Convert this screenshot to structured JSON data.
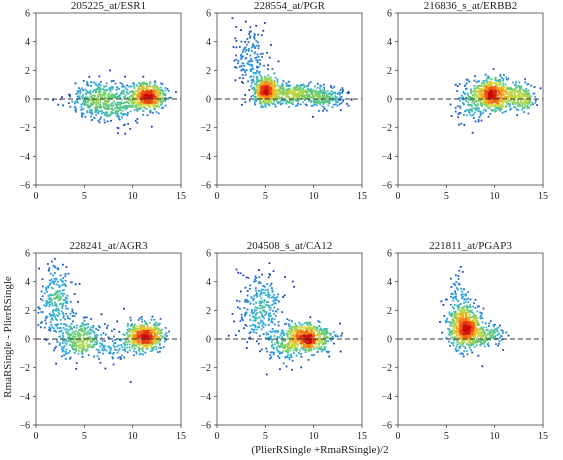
{
  "figure": {
    "xlabel": "(PlierRSingle +RmaRSingle)/2",
    "ylabel": "RmaRSingle - PlierRSingle"
  },
  "chart_data": [
    {
      "type": "scatter",
      "title": "205225_at/ESR1",
      "xlim": [
        0,
        15
      ],
      "ylim": [
        -6,
        6
      ],
      "xticks": [
        0,
        5,
        10,
        15
      ],
      "yticks": [
        -6,
        -4,
        -2,
        0,
        2,
        4,
        6
      ],
      "reference_line": {
        "y": 0,
        "style": "dashed"
      },
      "density_coloring": true,
      "clusters": [
        {
          "center": [
            11.6,
            0.2
          ],
          "spread": [
            0.9,
            0.45
          ],
          "count": 520,
          "dense": true
        },
        {
          "center": [
            6.5,
            -0.1
          ],
          "spread": [
            1.6,
            0.6
          ],
          "count": 380,
          "dense": false
        },
        {
          "center": [
            9.0,
            -0.3
          ],
          "spread": [
            1.4,
            0.8
          ],
          "count": 160,
          "dense": false
        }
      ]
    },
    {
      "type": "scatter",
      "title": "228554_at/PGR",
      "xlim": [
        0,
        15
      ],
      "ylim": [
        -6,
        6
      ],
      "xticks": [
        0,
        5,
        10,
        15
      ],
      "yticks": [
        -6,
        -4,
        -2,
        0,
        2,
        4,
        6
      ],
      "reference_line": {
        "y": 0,
        "style": "dashed"
      },
      "density_coloring": true,
      "clusters": [
        {
          "center": [
            5.2,
            0.6
          ],
          "spread": [
            0.7,
            0.45
          ],
          "count": 480,
          "dense": true
        },
        {
          "center": [
            8.3,
            0.3
          ],
          "spread": [
            1.8,
            0.35
          ],
          "count": 420,
          "dense": true
        },
        {
          "center": [
            3.6,
            2.8
          ],
          "spread": [
            0.9,
            1.2
          ],
          "count": 170,
          "dense": false
        },
        {
          "center": [
            11.5,
            0.0
          ],
          "spread": [
            1.0,
            0.35
          ],
          "count": 120,
          "dense": false
        }
      ]
    },
    {
      "type": "scatter",
      "title": "216836_s_at/ERBB2",
      "xlim": [
        0,
        15
      ],
      "ylim": [
        -6,
        6
      ],
      "xticks": [
        0,
        5,
        10,
        15
      ],
      "yticks": [
        -6,
        -4,
        -2,
        0,
        2,
        4,
        6
      ],
      "reference_line": {
        "y": 0,
        "style": "dashed"
      },
      "density_coloring": true,
      "clusters": [
        {
          "center": [
            9.8,
            0.3
          ],
          "spread": [
            1.0,
            0.55
          ],
          "count": 650,
          "dense": true
        },
        {
          "center": [
            12.8,
            0.1
          ],
          "spread": [
            0.8,
            0.45
          ],
          "count": 200,
          "dense": false
        },
        {
          "center": [
            7.5,
            -0.3
          ],
          "spread": [
            0.9,
            0.8
          ],
          "count": 120,
          "dense": false
        }
      ]
    },
    {
      "type": "scatter",
      "title": "228241_at/AGR3",
      "xlim": [
        0,
        15
      ],
      "ylim": [
        -6,
        6
      ],
      "xticks": [
        0,
        5,
        10,
        15
      ],
      "yticks": [
        -6,
        -4,
        -2,
        0,
        2,
        4,
        6
      ],
      "reference_line": {
        "y": 0,
        "style": "dashed"
      },
      "density_coloring": true,
      "clusters": [
        {
          "center": [
            11.3,
            0.2
          ],
          "spread": [
            0.9,
            0.5
          ],
          "count": 560,
          "dense": true
        },
        {
          "center": [
            4.5,
            0.0
          ],
          "spread": [
            1.2,
            0.6
          ],
          "count": 300,
          "dense": false
        },
        {
          "center": [
            2.0,
            2.5
          ],
          "spread": [
            0.9,
            1.3
          ],
          "count": 260,
          "dense": false
        },
        {
          "center": [
            7.5,
            -0.5
          ],
          "spread": [
            1.5,
            0.8
          ],
          "count": 100,
          "dense": false
        }
      ]
    },
    {
      "type": "scatter",
      "title": "204508_s_at/CA12",
      "xlim": [
        0,
        15
      ],
      "ylim": [
        -6,
        6
      ],
      "xticks": [
        0,
        5,
        10,
        15
      ],
      "yticks": [
        -6,
        -4,
        -2,
        0,
        2,
        4,
        6
      ],
      "reference_line": {
        "y": 0,
        "style": "dashed"
      },
      "density_coloring": true,
      "clusters": [
        {
          "center": [
            9.4,
            0.1
          ],
          "spread": [
            1.2,
            0.5
          ],
          "count": 620,
          "dense": true
        },
        {
          "center": [
            4.5,
            2.2
          ],
          "spread": [
            1.1,
            1.3
          ],
          "count": 280,
          "dense": false
        },
        {
          "center": [
            7.0,
            -0.5
          ],
          "spread": [
            1.0,
            0.7
          ],
          "count": 150,
          "dense": false
        }
      ]
    },
    {
      "type": "scatter",
      "title": "221811_at/PGAP3",
      "xlim": [
        0,
        15
      ],
      "ylim": [
        -6,
        6
      ],
      "xticks": [
        0,
        5,
        10,
        15
      ],
      "yticks": [
        -6,
        -4,
        -2,
        0,
        2,
        4,
        6
      ],
      "reference_line": {
        "y": 0,
        "style": "dashed"
      },
      "density_coloring": true,
      "clusters": [
        {
          "center": [
            6.9,
            0.8
          ],
          "spread": [
            0.8,
            0.75
          ],
          "count": 620,
          "dense": true
        },
        {
          "center": [
            9.0,
            0.2
          ],
          "spread": [
            1.0,
            0.45
          ],
          "count": 180,
          "dense": false
        },
        {
          "center": [
            6.3,
            2.5
          ],
          "spread": [
            0.6,
            1.0
          ],
          "count": 100,
          "dense": false
        }
      ]
    }
  ]
}
